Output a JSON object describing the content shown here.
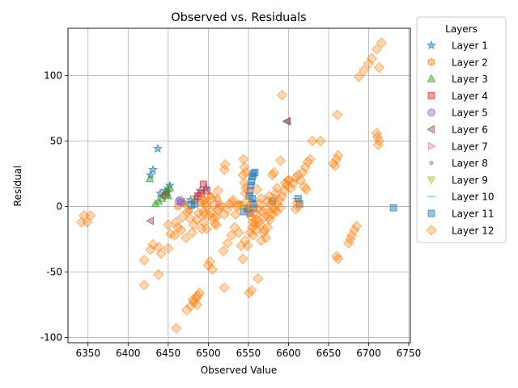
{
  "chart_data": {
    "type": "scatter",
    "title": "Observed vs. Residuals",
    "xlabel": "Observed Value",
    "ylabel": "Residual",
    "xlim": [
      6325,
      6752
    ],
    "ylim": [
      -104,
      136
    ],
    "xticks": [
      6350,
      6400,
      6450,
      6500,
      6550,
      6600,
      6650,
      6700,
      6750
    ],
    "yticks": [
      -100,
      -50,
      0,
      50,
      100
    ],
    "grid": true,
    "legend": {
      "title": "Layers",
      "placement": "outside-right"
    },
    "series": [
      {
        "name": "Layer 1",
        "marker": "star",
        "color": "#1f77b4",
        "points": [
          [
            6428,
            24
          ],
          [
            6431,
            28
          ],
          [
            6437,
            44
          ],
          [
            6440,
            10
          ],
          [
            6446,
            12
          ],
          [
            6452,
            16
          ],
          [
            6470,
            3
          ],
          [
            6478,
            5
          ],
          [
            6485,
            7
          ],
          [
            6490,
            12
          ],
          [
            6497,
            14
          ]
        ]
      },
      {
        "name": "Layer 2",
        "marker": "hexagon",
        "color": "#ff7f0e",
        "points": [
          [
            6462,
            0
          ],
          [
            6470,
            2
          ],
          [
            6476,
            -3
          ],
          [
            6482,
            4
          ],
          [
            6490,
            3
          ],
          [
            6496,
            5
          ],
          [
            6503,
            8
          ],
          [
            6511,
            6
          ]
        ]
      },
      {
        "name": "Layer 3",
        "marker": "triangle-up",
        "color": "#2ca02c",
        "points": [
          [
            6427,
            21
          ],
          [
            6434,
            2
          ],
          [
            6438,
            4
          ],
          [
            6442,
            6
          ],
          [
            6446,
            9
          ],
          [
            6448,
            11
          ],
          [
            6449,
            13
          ],
          [
            6450,
            8
          ],
          [
            6452,
            14
          ]
        ]
      },
      {
        "name": "Layer 4",
        "marker": "square",
        "color": "#d62728",
        "points": [
          [
            6487,
            8
          ],
          [
            6491,
            10
          ],
          [
            6494,
            17
          ],
          [
            6498,
            12
          ]
        ]
      },
      {
        "name": "Layer 5",
        "marker": "circle",
        "color": "#9467bd",
        "points": [
          [
            6463,
            4
          ],
          [
            6465,
            5
          ],
          [
            6466,
            3
          ]
        ]
      },
      {
        "name": "Layer 6",
        "marker": "triangle-left",
        "color": "#8c564b",
        "points": [
          [
            6428,
            -11
          ],
          [
            6443,
            8
          ],
          [
            6448,
            10
          ],
          [
            6598,
            65
          ],
          [
            6599,
            65
          ]
        ]
      },
      {
        "name": "Layer 7",
        "marker": "triangle-right",
        "color": "#e377c2",
        "points": [
          [
            6513,
            2
          ]
        ]
      },
      {
        "name": "Layer 8",
        "marker": "point",
        "color": "#7f7f7f",
        "points": [
          [
            6540,
            3
          ],
          [
            6548,
            -2
          ],
          [
            6556,
            4
          ]
        ]
      },
      {
        "name": "Layer 9",
        "marker": "triangle-down",
        "color": "#bcbd22",
        "points": [
          [
            6540,
            1
          ],
          [
            6545,
            -1
          ]
        ]
      },
      {
        "name": "Layer 10",
        "marker": "hline",
        "color": "#17becf",
        "points": [
          [
            6580,
            4
          ],
          [
            6610,
            6
          ]
        ]
      },
      {
        "name": "Layer 11",
        "marker": "square",
        "color": "#1f77b4",
        "points": [
          [
            6479,
            1
          ],
          [
            6483,
            2
          ],
          [
            6544,
            -4
          ],
          [
            6549,
            -2
          ],
          [
            6551,
            8
          ],
          [
            6552,
            12
          ],
          [
            6553,
            16
          ],
          [
            6554,
            19
          ],
          [
            6555,
            23
          ],
          [
            6556,
            25
          ],
          [
            6555,
            6
          ],
          [
            6556,
            2
          ],
          [
            6557,
            -1
          ],
          [
            6552,
            -5
          ],
          [
            6558,
            26
          ],
          [
            6580,
            4
          ],
          [
            6612,
            6
          ],
          [
            6614,
            2
          ],
          [
            6731,
            -1
          ]
        ]
      },
      {
        "name": "Layer 12",
        "marker": "diamond",
        "color": "#ff7f0e",
        "points": [
          [
            6342,
            -12
          ],
          [
            6345,
            -7
          ],
          [
            6349,
            -12
          ],
          [
            6353,
            -7
          ],
          [
            6420,
            -41
          ],
          [
            6420,
            -60
          ],
          [
            6428,
            -33
          ],
          [
            6431,
            -29
          ],
          [
            6438,
            -31
          ],
          [
            6438,
            -52
          ],
          [
            6441,
            -36
          ],
          [
            6450,
            -32
          ],
          [
            6453,
            -21
          ],
          [
            6450,
            -14
          ],
          [
            6460,
            -12
          ],
          [
            6466,
            -18
          ],
          [
            6472,
            -24
          ],
          [
            6477,
            -9
          ],
          [
            6482,
            -14
          ],
          [
            6488,
            -5
          ],
          [
            6494,
            -12
          ],
          [
            6498,
            0
          ],
          [
            6503,
            -4
          ],
          [
            6506,
            -9
          ],
          [
            6512,
            -3
          ],
          [
            6516,
            1
          ],
          [
            6520,
            -6
          ],
          [
            6526,
            2
          ],
          [
            6531,
            5
          ],
          [
            6536,
            0
          ],
          [
            6458,
            -22
          ],
          [
            6462,
            -16
          ],
          [
            6468,
            -8
          ],
          [
            6474,
            -4
          ],
          [
            6480,
            -20
          ],
          [
            6486,
            -10
          ],
          [
            6492,
            -17
          ],
          [
            6501,
            -7
          ],
          [
            6508,
            -13
          ],
          [
            6514,
            -1
          ],
          [
            6460,
            -93
          ],
          [
            6473,
            -79
          ],
          [
            6478,
            -76
          ],
          [
            6482,
            -73
          ],
          [
            6485,
            -70
          ],
          [
            6487,
            -68
          ],
          [
            6489,
            -66
          ],
          [
            6486,
            -75
          ],
          [
            6481,
            -71
          ],
          [
            6498,
            -17
          ],
          [
            6500,
            -45
          ],
          [
            6502,
            -42
          ],
          [
            6505,
            -48
          ],
          [
            6510,
            -14
          ],
          [
            6519,
            -34
          ],
          [
            6520,
            -62
          ],
          [
            6524,
            -28
          ],
          [
            6529,
            -22
          ],
          [
            6533,
            -16
          ],
          [
            6538,
            -20
          ],
          [
            6541,
            -30
          ],
          [
            6543,
            -40
          ],
          [
            6546,
            -26
          ],
          [
            6549,
            -30
          ],
          [
            6551,
            -66
          ],
          [
            6554,
            -64
          ],
          [
            6556,
            -22
          ],
          [
            6559,
            -18
          ],
          [
            6562,
            -55
          ],
          [
            6563,
            -12
          ],
          [
            6566,
            -26
          ],
          [
            6569,
            -20
          ],
          [
            6572,
            -24
          ],
          [
            6574,
            -16
          ],
          [
            6577,
            -10
          ],
          [
            6580,
            -6
          ],
          [
            6583,
            -2
          ],
          [
            6586,
            2
          ],
          [
            6589,
            5
          ],
          [
            6592,
            8
          ],
          [
            6595,
            12
          ],
          [
            6598,
            16
          ],
          [
            6600,
            20
          ],
          [
            6603,
            14
          ],
          [
            6606,
            18
          ],
          [
            6609,
            22
          ],
          [
            6612,
            24
          ],
          [
            6615,
            20
          ],
          [
            6618,
            26
          ],
          [
            6621,
            30
          ],
          [
            6624,
            34
          ],
          [
            6627,
            36
          ],
          [
            6611,
            3
          ],
          [
            6609,
            -2
          ],
          [
            6612,
            0
          ],
          [
            6620,
            15
          ],
          [
            6622,
            13
          ],
          [
            6544,
            36
          ],
          [
            6545,
            30
          ],
          [
            6543,
            24
          ],
          [
            6547,
            26
          ],
          [
            6545,
            18
          ],
          [
            6547,
            14
          ],
          [
            6546,
            10
          ],
          [
            6548,
            4
          ],
          [
            6550,
            0
          ],
          [
            6552,
            -4
          ],
          [
            6554,
            -8
          ],
          [
            6556,
            -12
          ],
          [
            6558,
            -14
          ],
          [
            6560,
            -6
          ],
          [
            6562,
            -2
          ],
          [
            6564,
            2
          ],
          [
            6566,
            6
          ],
          [
            6568,
            -4
          ],
          [
            6570,
            -8
          ],
          [
            6572,
            -2
          ],
          [
            6574,
            4
          ],
          [
            6576,
            8
          ],
          [
            6578,
            2
          ],
          [
            6580,
            -2
          ],
          [
            6582,
            6
          ],
          [
            6584,
            10
          ],
          [
            6586,
            14
          ],
          [
            6580,
            24
          ],
          [
            6582,
            26
          ],
          [
            6590,
            35
          ],
          [
            6592,
            85
          ],
          [
            6596,
            18
          ],
          [
            6561,
            13
          ],
          [
            6600,
            20
          ],
          [
            6630,
            50
          ],
          [
            6640,
            50
          ],
          [
            6656,
            33
          ],
          [
            6658,
            31
          ],
          [
            6660,
            36
          ],
          [
            6662,
            39
          ],
          [
            6661,
            70
          ],
          [
            6660,
            -38
          ],
          [
            6662,
            -40
          ],
          [
            6675,
            -28
          ],
          [
            6677,
            -25
          ],
          [
            6679,
            -22
          ],
          [
            6682,
            -18
          ],
          [
            6685,
            -15
          ],
          [
            6688,
            99
          ],
          [
            6694,
            104
          ],
          [
            6700,
            109
          ],
          [
            6704,
            113
          ],
          [
            6710,
            120
          ],
          [
            6713,
            106
          ],
          [
            6716,
            125
          ],
          [
            6710,
            56
          ],
          [
            6711,
            53
          ],
          [
            6713,
            50
          ],
          [
            6712,
            47
          ],
          [
            6524,
            -2
          ],
          [
            6530,
            3
          ],
          [
            6534,
            -6
          ],
          [
            6538,
            1
          ],
          [
            6552,
            -20
          ],
          [
            6555,
            -16
          ],
          [
            6560,
            -10
          ],
          [
            6565,
            -14
          ],
          [
            6570,
            -18
          ],
          [
            6575,
            -8
          ],
          [
            6585,
            -4
          ],
          [
            6590,
            -1
          ],
          [
            6495,
            -6
          ],
          [
            6497,
            2
          ],
          [
            6504,
            6
          ],
          [
            6507,
            1
          ],
          [
            6510,
            -8
          ],
          [
            6512,
            12
          ],
          [
            6520,
            28
          ],
          [
            6521,
            32
          ],
          [
            6494,
            4
          ],
          [
            6494,
            -4
          ]
        ]
      }
    ]
  }
}
